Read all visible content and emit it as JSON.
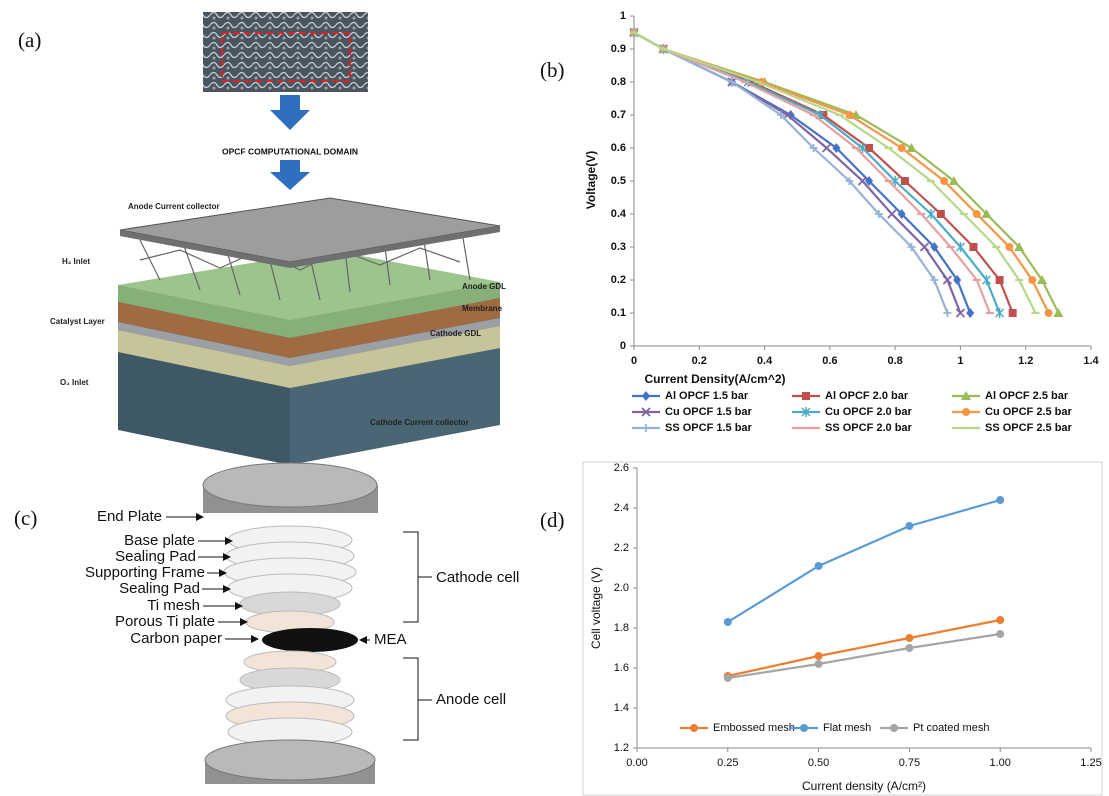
{
  "panel_a": {
    "label": "(a)",
    "domain_title": "OPCF COMPUTATIONAL DOMAIN",
    "parts": [
      "Anode Current collector",
      "H₂ Inlet",
      "Anode GDL",
      "Membrane",
      "Catalyst Layer",
      "Cathode GDL",
      "O₂ Inlet",
      "Cathode Current collector"
    ]
  },
  "panel_c": {
    "label": "(c)",
    "parts": [
      "End Plate",
      "Base plate",
      "Sealing Pad",
      "Supporting Frame",
      "Sealing Pad",
      "Ti mesh",
      "Porous Ti plate",
      "Carbon paper",
      "MEA",
      "Cathode cell",
      "Anode cell"
    ]
  },
  "chart_data": [
    {
      "type": "line",
      "label": "(b)",
      "x_label": "Current Density(A/cm^2)",
      "y_label": "Voltage(V)",
      "xlim": [
        0,
        1.4
      ],
      "xticks": [
        0,
        0.2,
        0.4,
        0.6,
        0.8,
        1,
        1.2,
        1.4
      ],
      "ylim": [
        0,
        1
      ],
      "yticks": [
        0,
        0.1,
        0.2,
        0.3,
        0.4,
        0.5,
        0.6,
        0.7,
        0.8,
        0.9,
        1
      ],
      "legend": "bottom",
      "series": [
        {
          "name": "Al OPCF 1.5 bar",
          "color": "#4472c4",
          "marker": "diamond",
          "x": [
            0,
            0.09,
            0.3,
            0.48,
            0.62,
            0.72,
            0.82,
            0.92,
            0.99,
            1.03
          ],
          "values": [
            0.95,
            0.9,
            0.8,
            0.7,
            0.6,
            0.5,
            0.4,
            0.3,
            0.2,
            0.1
          ]
        },
        {
          "name": "Al OPCF 2.0 bar",
          "color": "#c0504d",
          "marker": "square",
          "x": [
            0,
            0.09,
            0.36,
            0.58,
            0.72,
            0.83,
            0.94,
            1.04,
            1.12,
            1.16
          ],
          "values": [
            0.95,
            0.9,
            0.8,
            0.7,
            0.6,
            0.5,
            0.4,
            0.3,
            0.2,
            0.1
          ]
        },
        {
          "name": "Al OPCF 2.5 bar",
          "color": "#9bbb59",
          "marker": "triangle",
          "x": [
            0,
            0.09,
            0.4,
            0.68,
            0.85,
            0.98,
            1.08,
            1.18,
            1.25,
            1.3
          ],
          "values": [
            0.95,
            0.9,
            0.8,
            0.7,
            0.6,
            0.5,
            0.4,
            0.3,
            0.2,
            0.1
          ]
        },
        {
          "name": "Cu OPCF 1.5 bar",
          "color": "#8064a2",
          "marker": "x",
          "x": [
            0,
            0.09,
            0.3,
            0.47,
            0.59,
            0.7,
            0.79,
            0.89,
            0.96,
            1.0
          ],
          "values": [
            0.95,
            0.9,
            0.8,
            0.7,
            0.6,
            0.5,
            0.4,
            0.3,
            0.2,
            0.1
          ]
        },
        {
          "name": "Cu OPCF 2.0 bar",
          "color": "#4bacc6",
          "marker": "star",
          "x": [
            0,
            0.09,
            0.35,
            0.57,
            0.7,
            0.8,
            0.91,
            1.0,
            1.08,
            1.12
          ],
          "values": [
            0.95,
            0.9,
            0.8,
            0.7,
            0.6,
            0.5,
            0.4,
            0.3,
            0.2,
            0.1
          ]
        },
        {
          "name": "Cu OPCF 2.5 bar",
          "color": "#f79646",
          "marker": "circle",
          "x": [
            0,
            0.09,
            0.39,
            0.66,
            0.82,
            0.95,
            1.05,
            1.15,
            1.22,
            1.27
          ],
          "values": [
            0.95,
            0.9,
            0.8,
            0.7,
            0.6,
            0.5,
            0.4,
            0.3,
            0.2,
            0.1
          ]
        },
        {
          "name": "SS OPCF 1.5 bar",
          "color": "#95b3d7",
          "marker": "plus",
          "x": [
            0,
            0.09,
            0.3,
            0.45,
            0.55,
            0.66,
            0.75,
            0.85,
            0.92,
            0.96
          ],
          "values": [
            0.95,
            0.9,
            0.8,
            0.7,
            0.6,
            0.5,
            0.4,
            0.3,
            0.2,
            0.1
          ]
        },
        {
          "name": "SS OPCF 2.0 bar",
          "color": "#e6a0a0",
          "marker": "dash",
          "x": [
            0,
            0.09,
            0.34,
            0.55,
            0.68,
            0.78,
            0.88,
            0.97,
            1.05,
            1.09
          ],
          "values": [
            0.95,
            0.9,
            0.8,
            0.7,
            0.6,
            0.5,
            0.4,
            0.3,
            0.2,
            0.1
          ]
        },
        {
          "name": "SS OPCF 2.5 bar",
          "color": "#b5d88a",
          "marker": "dash",
          "x": [
            0,
            0.09,
            0.38,
            0.63,
            0.78,
            0.91,
            1.01,
            1.11,
            1.18,
            1.23
          ],
          "values": [
            0.95,
            0.9,
            0.8,
            0.7,
            0.6,
            0.5,
            0.4,
            0.3,
            0.2,
            0.1
          ]
        }
      ]
    },
    {
      "type": "line",
      "label": "(d)",
      "x_label": "Current density (A/cm²)",
      "y_label": "Cell voltage (V)",
      "x": [
        0.25,
        0.5,
        0.75,
        1.0
      ],
      "xlim": [
        0,
        1.25
      ],
      "xticks": [
        {
          "value": 0,
          "label": "0.00"
        },
        {
          "value": 0.25,
          "label": "0.25"
        },
        {
          "value": 0.5,
          "label": "0.50"
        },
        {
          "value": 0.75,
          "label": "0.75"
        },
        {
          "value": 1,
          "label": "1.00"
        },
        {
          "value": 1.25,
          "label": "1.25"
        }
      ],
      "ylim": [
        1.2,
        2.6
      ],
      "yticks": [
        1.2,
        1.4,
        1.6,
        1.8,
        {
          "value": 2,
          "label": "2.0"
        },
        2.2,
        2.4,
        2.6
      ],
      "legend": "bottom",
      "series": [
        {
          "name": "Embossed mesh",
          "color": "#ed7d31",
          "marker": "circle",
          "values": [
            1.56,
            1.66,
            1.75,
            1.84
          ]
        },
        {
          "name": "Flat mesh",
          "color": "#5b9bd5",
          "marker": "circle",
          "values": [
            1.83,
            2.11,
            2.31,
            2.44
          ]
        },
        {
          "name": "Pt coated mesh",
          "color": "#a5a5a5",
          "marker": "circle",
          "values": [
            1.55,
            1.62,
            1.7,
            1.77
          ]
        }
      ]
    }
  ]
}
